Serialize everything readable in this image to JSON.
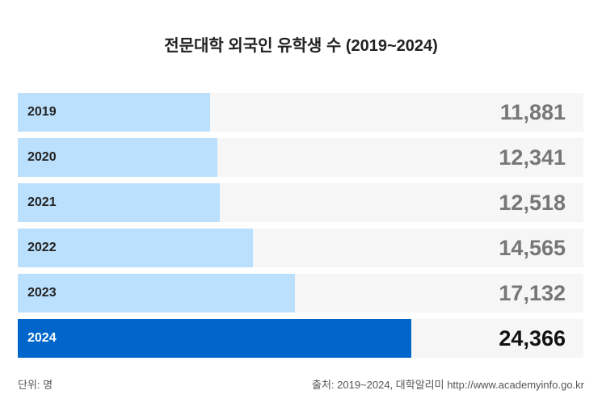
{
  "chart_data": {
    "type": "bar",
    "orientation": "horizontal",
    "title": "전문대학 외국인 유학생 수 (2019~2024)",
    "categories": [
      "2019",
      "2020",
      "2021",
      "2022",
      "2023",
      "2024"
    ],
    "values": [
      11881,
      12341,
      12518,
      14565,
      17132,
      24366
    ],
    "value_labels": [
      "11,881",
      "12,341",
      "12,518",
      "14,565",
      "17,132",
      "24,366"
    ],
    "highlight": "2024",
    "xlim": [
      0,
      35000
    ],
    "unit": "단위: 명",
    "source": "출처: 2019~2024, 대학알리미  http://www.academyinfo.go.kr"
  },
  "colors": {
    "bar": "#bbe0fd",
    "highlight": "#0066cc",
    "track": "#f6f6f6"
  }
}
